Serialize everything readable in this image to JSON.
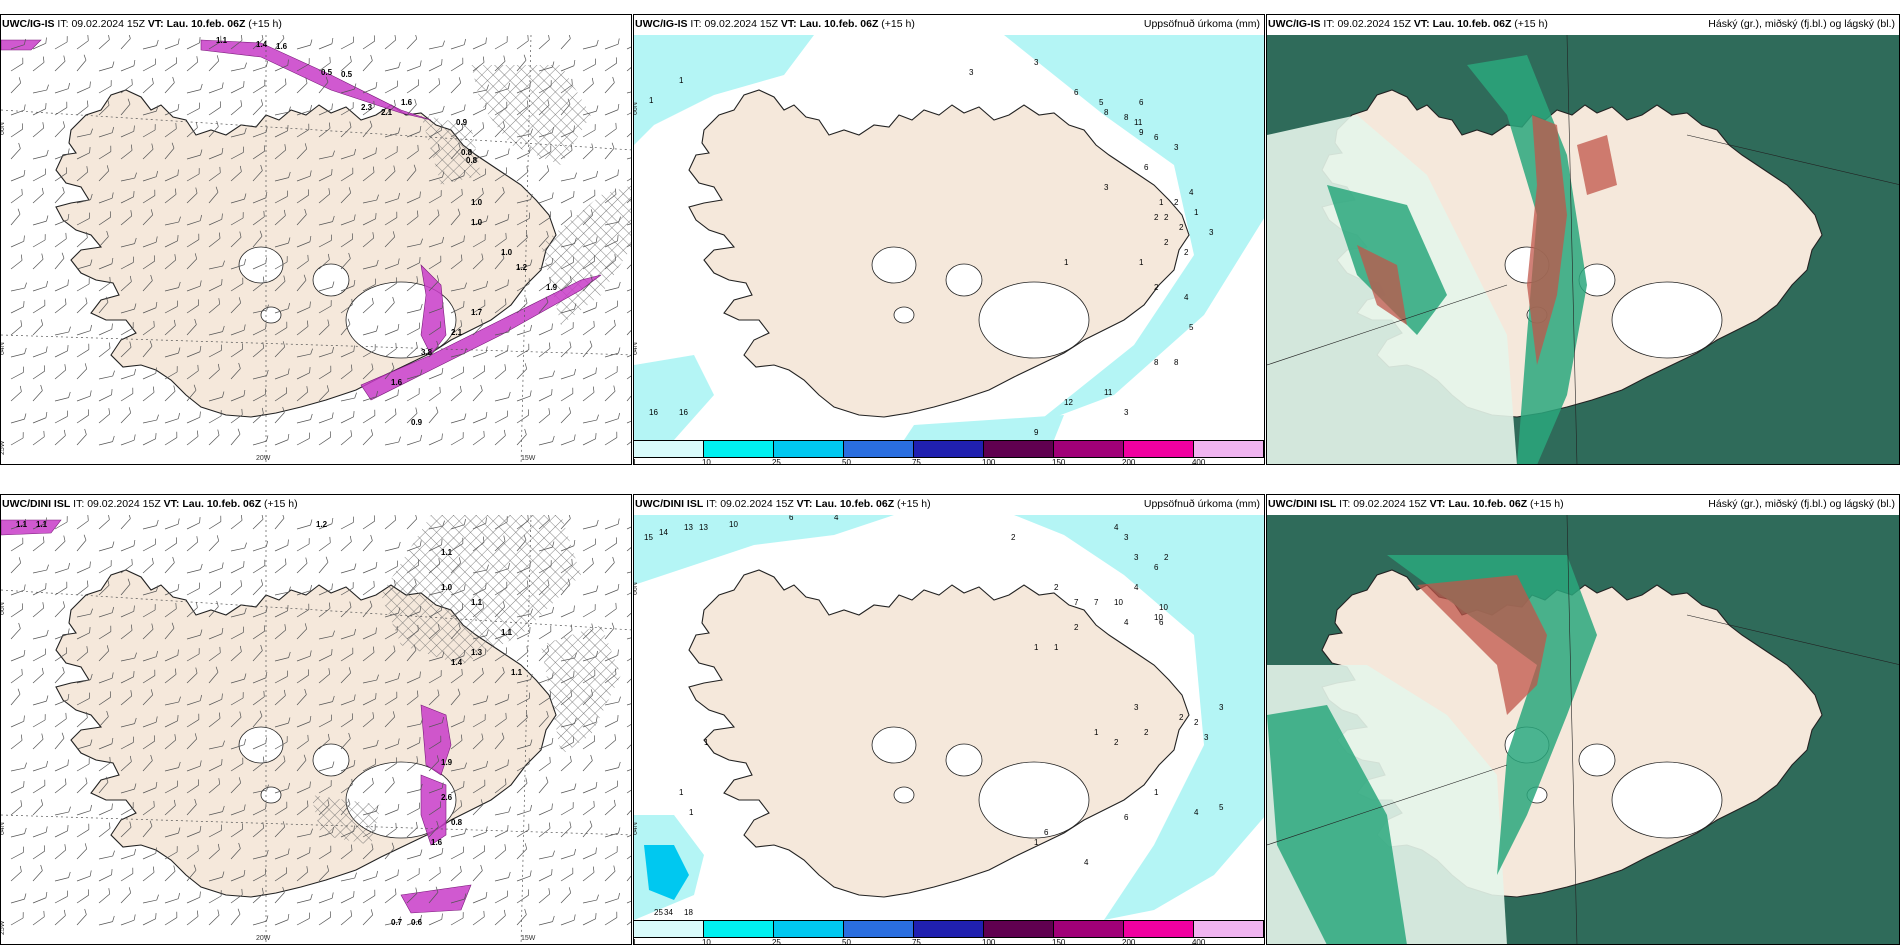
{
  "colors": {
    "land": "#f5e8db",
    "coast": "#222222",
    "precip_light": "#b4f5f5",
    "wind_barb": "#555555",
    "icing": "#c83cc8",
    "hatch": "#666666",
    "cloud_dark": "#2f6b5a",
    "cloud_mid": "#2aa77c",
    "cloud_light": "#e6f5ea",
    "cloud_red": "#c0554a"
  },
  "colorbar": {
    "colors": [
      "#d9fbfb",
      "#00f0f0",
      "#00c8f0",
      "#2a6ee0",
      "#2020b0",
      "#600050",
      "#a00078",
      "#f000a0",
      "#f0b4f0"
    ],
    "ticks": [
      "1",
      "10",
      "25",
      "50",
      "75",
      "100",
      "150",
      "200",
      "400"
    ]
  },
  "rows": [
    {
      "model": "UWC/IG-IS",
      "it_label": "IT:",
      "it_value": "09.02.2024 15Z",
      "vt_label": "VT:",
      "vt_value": "Lau. 10.feb. 06Z",
      "lead": "(+15 h)",
      "precip_title": "Uppsöfnuð úrkoma (mm)",
      "cloud_title": "Háský (gr.), miðský (fj.bl.) og lágský (bl.)",
      "lat_labels": [
        "66N",
        "64N"
      ],
      "lon_labels": [
        "20W",
        "15W"
      ],
      "edge_label": "25W",
      "icing_values": [
        "1.1",
        "1.4",
        "1.6",
        "0.5",
        "0.5",
        "2.3",
        "2.1",
        "1.6",
        "0.9",
        "0.8",
        "0.8",
        "1.0",
        "1.0",
        "1.2",
        "1.9",
        "1.7",
        "2.1",
        "3.8",
        "1.6",
        "0.9",
        "1.0"
      ],
      "precip_values": [
        "3",
        "1",
        "1",
        "3",
        "6",
        "5",
        "8",
        "8",
        "6",
        "11",
        "9",
        "6",
        "3",
        "3",
        "6",
        "4",
        "2",
        "1",
        "2",
        "2",
        "2",
        "1",
        "2",
        "2",
        "3",
        "1",
        "2",
        "4",
        "1",
        "5",
        "8",
        "8",
        "12",
        "11",
        "3",
        "16",
        "16",
        "9"
      ]
    },
    {
      "model": "UWC/DINI ISL",
      "it_label": "IT:",
      "it_value": "09.02.2024 15Z",
      "vt_label": "VT:",
      "vt_value": "Lau. 10.feb. 06Z",
      "lead": "(+15 h)",
      "precip_title": "Uppsöfnuð úrkoma (mm)",
      "cloud_title": "Háský (gr.), miðský (fj.bl.) og lágský (bl.)",
      "lat_labels": [
        "66N",
        "64N"
      ],
      "lon_labels": [
        "20W",
        "15W"
      ],
      "edge_label": "25W",
      "icing_values": [
        "1.1",
        "1.1",
        "1.2",
        "1.1",
        "1.0",
        "1.1",
        "1.1",
        "1.3",
        "1.1",
        "1.4",
        "1.9",
        "2.6",
        "0.8",
        "1.6",
        "0.7",
        "0.6"
      ],
      "precip_values": [
        "15",
        "14",
        "13",
        "13",
        "10",
        "6",
        "4",
        "2",
        "4",
        "3",
        "3",
        "2",
        "6",
        "4",
        "2",
        "7",
        "7",
        "10",
        "10",
        "10",
        "6",
        "4",
        "2",
        "1",
        "1",
        "1",
        "2",
        "2",
        "2",
        "3",
        "3",
        "3",
        "2",
        "1",
        "4",
        "5",
        "6",
        "4",
        "6",
        "34",
        "25",
        "18",
        "1",
        "1",
        "1",
        "1"
      ]
    }
  ]
}
